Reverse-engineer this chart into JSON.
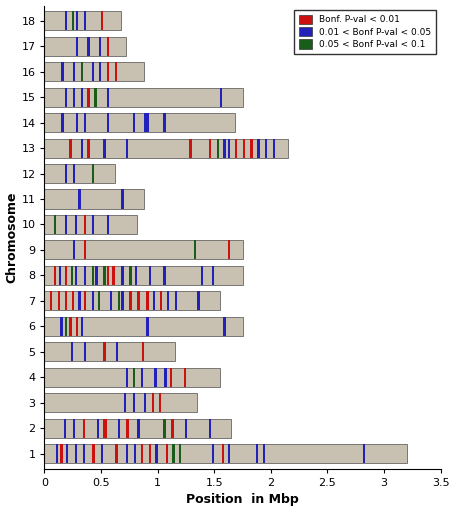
{
  "chromosomes": [
    1,
    2,
    3,
    4,
    5,
    6,
    7,
    8,
    9,
    10,
    11,
    12,
    13,
    14,
    15,
    16,
    17,
    18
  ],
  "chr_lengths": {
    "1": 3.2,
    "2": 1.65,
    "3": 1.35,
    "4": 1.55,
    "5": 1.15,
    "6": 1.75,
    "7": 1.55,
    "8": 1.75,
    "9": 1.75,
    "10": 0.82,
    "11": 0.88,
    "12": 0.62,
    "13": 2.15,
    "14": 1.68,
    "15": 1.75,
    "16": 0.88,
    "17": 0.72,
    "18": 0.68
  },
  "snps": {
    "1": {
      "red": [
        0.14,
        0.16,
        0.42,
        0.45,
        0.62,
        0.65,
        0.85,
        0.87,
        0.92,
        0.94,
        1.07,
        1.09,
        1.57,
        1.59
      ],
      "blue": [
        0.1,
        0.12,
        0.19,
        0.21,
        0.27,
        0.29,
        0.34,
        0.36,
        0.5,
        0.52,
        0.72,
        0.74,
        0.79,
        0.81,
        0.98,
        1.0,
        1.48,
        1.5,
        1.62,
        1.64,
        1.87,
        1.89,
        1.93,
        1.95,
        2.81,
        2.83
      ],
      "green": [
        1.13,
        1.15,
        1.19,
        1.21
      ]
    },
    "2": {
      "red": [
        0.34,
        0.36,
        0.52,
        0.55,
        0.72,
        0.75,
        1.12,
        1.14
      ],
      "blue": [
        0.17,
        0.19,
        0.25,
        0.27,
        0.46,
        0.48,
        0.65,
        0.67,
        0.82,
        0.84,
        1.24,
        1.26,
        1.45,
        1.47
      ],
      "green": [
        1.05,
        1.07
      ]
    },
    "3": {
      "red": [
        0.95,
        0.97,
        1.01,
        1.03
      ],
      "blue": [
        0.7,
        0.72,
        0.78,
        0.8,
        0.88,
        0.9
      ],
      "green": []
    },
    "4": {
      "red": [
        1.11,
        1.13,
        1.23,
        1.25
      ],
      "blue": [
        0.72,
        0.74,
        0.85,
        0.87,
        0.97,
        0.99,
        1.06,
        1.08
      ],
      "green": [
        0.78,
        0.8
      ]
    },
    "5": {
      "red": [
        0.52,
        0.54,
        0.86,
        0.88
      ],
      "blue": [
        0.23,
        0.25,
        0.35,
        0.37,
        0.63,
        0.65
      ],
      "green": []
    },
    "6": {
      "red": [
        0.22,
        0.24,
        0.28,
        0.3
      ],
      "blue": [
        0.14,
        0.16,
        0.32,
        0.34,
        0.9,
        0.92,
        1.58,
        1.6
      ],
      "green": [
        0.18,
        0.2
      ]
    },
    "7": {
      "red": [
        0.05,
        0.07,
        0.12,
        0.14,
        0.18,
        0.2,
        0.24,
        0.26,
        0.35,
        0.37,
        0.75,
        0.77,
        0.82,
        0.84,
        0.9,
        0.92,
        1.02,
        1.04
      ],
      "blue": [
        0.3,
        0.32,
        0.42,
        0.44,
        0.58,
        0.6,
        0.68,
        0.7,
        0.96,
        0.98,
        1.08,
        1.1,
        1.15,
        1.17,
        1.35,
        1.37
      ],
      "green": [
        0.47,
        0.49,
        0.65,
        0.67
      ]
    },
    "8": {
      "red": [
        0.08,
        0.1,
        0.18,
        0.2,
        0.55,
        0.57,
        0.6,
        0.62
      ],
      "blue": [
        0.13,
        0.15,
        0.27,
        0.29,
        0.35,
        0.37,
        0.45,
        0.47,
        0.68,
        0.7,
        0.8,
        0.82,
        0.92,
        0.94,
        1.05,
        1.07,
        1.38,
        1.4,
        1.48,
        1.5
      ],
      "green": [
        0.23,
        0.25,
        0.42,
        0.44,
        0.52,
        0.54,
        0.75,
        0.77
      ]
    },
    "9": {
      "red": [
        0.35,
        0.37,
        1.62,
        1.64
      ],
      "blue": [
        0.25,
        0.27
      ],
      "green": [
        1.32,
        1.34
      ]
    },
    "10": {
      "red": [
        0.35,
        0.37
      ],
      "blue": [
        0.18,
        0.2,
        0.27,
        0.29,
        0.42,
        0.44,
        0.55,
        0.57
      ],
      "green": [
        0.08,
        0.1
      ]
    },
    "11": {
      "red": [],
      "blue": [
        0.3,
        0.32,
        0.68,
        0.7
      ],
      "green": []
    },
    "12": {
      "red": [],
      "blue": [
        0.18,
        0.2,
        0.25,
        0.27
      ],
      "green": [
        0.42,
        0.44
      ]
    },
    "13": {
      "red": [
        0.22,
        0.24,
        0.38,
        0.4,
        1.28,
        1.3,
        1.45,
        1.47,
        1.68,
        1.7,
        1.75,
        1.77,
        1.82,
        1.84
      ],
      "blue": [
        0.32,
        0.34,
        0.52,
        0.54,
        0.72,
        0.74,
        1.58,
        1.6,
        1.62,
        1.64,
        1.88,
        1.9,
        1.95,
        1.97,
        2.02,
        2.04
      ],
      "green": [
        1.52,
        1.54
      ]
    },
    "14": {
      "red": [],
      "blue": [
        0.15,
        0.17,
        0.28,
        0.3,
        0.35,
        0.37,
        0.55,
        0.57,
        0.78,
        0.8,
        0.88,
        0.92,
        1.05,
        1.07
      ],
      "green": []
    },
    "15": {
      "red": [
        0.38,
        0.4
      ],
      "blue": [
        0.18,
        0.2,
        0.25,
        0.27,
        0.32,
        0.34,
        0.55,
        0.57,
        1.55,
        1.57
      ],
      "green": [
        0.44,
        0.46
      ]
    },
    "16": {
      "red": [
        0.55,
        0.57,
        0.62,
        0.64
      ],
      "blue": [
        0.15,
        0.17,
        0.25,
        0.27,
        0.42,
        0.44,
        0.48,
        0.5
      ],
      "green": [
        0.32,
        0.34
      ]
    },
    "17": {
      "red": [
        0.55,
        0.57
      ],
      "blue": [
        0.28,
        0.3,
        0.38,
        0.4,
        0.48,
        0.5
      ],
      "green": []
    },
    "18": {
      "red": [
        0.5,
        0.52
      ],
      "blue": [
        0.18,
        0.2,
        0.28,
        0.3,
        0.35,
        0.37
      ],
      "green": [
        0.24,
        0.26
      ]
    }
  },
  "bar_color": "#C8C0B0",
  "bar_edge_color": "#666666",
  "red_color": "#CC1111",
  "blue_color": "#2222BB",
  "green_color": "#1A5C1A",
  "xlabel": "Position  in Mbp",
  "ylabel": "Chromosome",
  "xlim": [
    0,
    3.5
  ],
  "xticks": [
    0,
    0.5,
    1.0,
    1.5,
    2.0,
    2.5,
    3.0,
    3.5
  ],
  "xtick_labels": [
    "0",
    "0.5",
    "1",
    "1.5",
    "2",
    "2.5",
    "3",
    "3.5"
  ],
  "legend_labels": [
    "Bonf. P-val < 0.01",
    "0.01 < Bonf P-val < 0.05",
    "0.05 < Bonf P-val < 0.1"
  ],
  "legend_colors": [
    "#CC1111",
    "#2222BB",
    "#1A5C1A"
  ],
  "bar_height": 0.75,
  "title_fontsize": 9,
  "axis_fontsize": 9,
  "tick_fontsize": 8
}
